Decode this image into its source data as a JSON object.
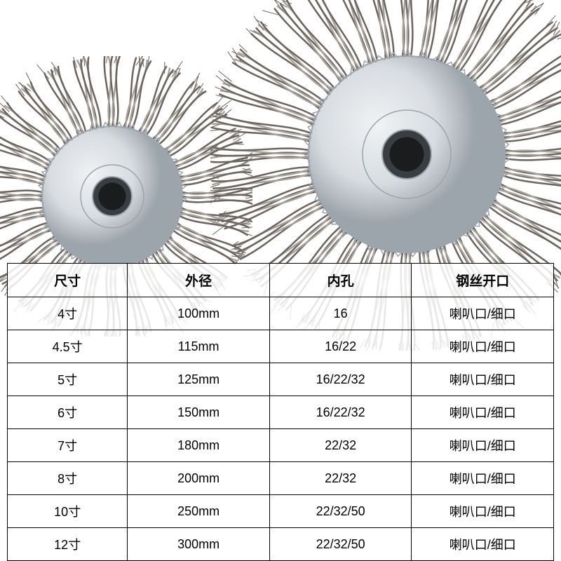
{
  "product_image": {
    "wire_segments_large": 36,
    "wire_segments_small": 28,
    "wire_color": "#6b6560",
    "wire_highlight": "#a8a29a",
    "hub_color": "#d8dce0",
    "hub_highlight": "#f0f2f4",
    "hub_shadow": "#9ca4ac",
    "large_outer_radius": 280,
    "large_hub_radius": 140,
    "large_center_hole": 35,
    "small_outer_radius": 200,
    "small_hub_radius": 100,
    "small_center_hole": 28
  },
  "table": {
    "border_color": "#000000",
    "text_color": "#000000",
    "background_color": "#ffffff",
    "header_fontsize": 19,
    "cell_fontsize": 18,
    "columns": [
      {
        "label": "尺寸",
        "width": "22%"
      },
      {
        "label": "外径",
        "width": "26%"
      },
      {
        "label": "内孔",
        "width": "26%"
      },
      {
        "label": "钢丝开口",
        "width": "26%"
      }
    ],
    "rows": [
      [
        "4寸",
        "100mm",
        "16",
        "喇叭口/细口"
      ],
      [
        "4.5寸",
        "115mm",
        "16/22",
        "喇叭口/细口"
      ],
      [
        "5寸",
        "125mm",
        "16/22/32",
        "喇叭口/细口"
      ],
      [
        "6寸",
        "150mm",
        "16/22/32",
        "喇叭口/细口"
      ],
      [
        "7寸",
        "180mm",
        "22/32",
        "喇叭口/细口"
      ],
      [
        "8寸",
        "200mm",
        "22/32",
        "喇叭口/细口"
      ],
      [
        "10寸",
        "250mm",
        "22/32/50",
        "喇叭口/细口"
      ],
      [
        "12寸",
        "300mm",
        "22/32/50",
        "喇叭口/细口"
      ]
    ]
  }
}
